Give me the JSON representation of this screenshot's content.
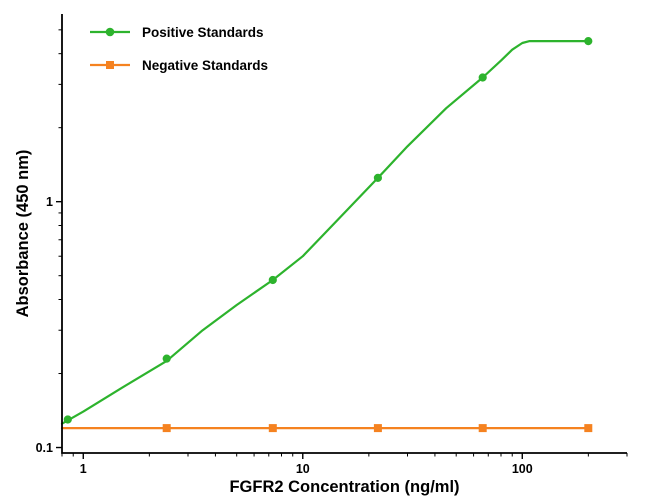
{
  "chart_data": {
    "type": "line",
    "title": "",
    "xlabel": "FGFR2 Concentration (ng/ml)",
    "ylabel": "Absorbance (450 nm)",
    "x_scale": "log",
    "y_scale": "log",
    "xlim": [
      0.8,
      300
    ],
    "ylim": [
      0.095,
      5.8
    ],
    "x_major_ticks": [
      1,
      10,
      100
    ],
    "y_major_ticks": [
      0.1,
      1
    ],
    "grid": false,
    "legend_position": "top-left",
    "axis_color": "#000000",
    "series": [
      {
        "name": "Positive Standards",
        "color": "#2db32d",
        "marker": "circle",
        "points": [
          [
            0.85,
            0.13
          ],
          [
            2.4,
            0.23
          ],
          [
            7.3,
            0.48
          ],
          [
            22,
            1.25
          ],
          [
            66,
            3.2
          ],
          [
            200,
            4.5
          ]
        ],
        "fit_curve": [
          [
            0.8,
            0.125
          ],
          [
            1,
            0.14
          ],
          [
            1.5,
            0.175
          ],
          [
            2.4,
            0.225
          ],
          [
            3.5,
            0.3
          ],
          [
            5,
            0.38
          ],
          [
            7.3,
            0.48
          ],
          [
            10,
            0.6
          ],
          [
            14,
            0.82
          ],
          [
            22,
            1.25
          ],
          [
            30,
            1.68
          ],
          [
            45,
            2.4
          ],
          [
            66,
            3.2
          ],
          [
            80,
            3.75
          ],
          [
            90,
            4.15
          ],
          [
            100,
            4.42
          ],
          [
            108,
            4.5
          ],
          [
            200,
            4.5
          ]
        ]
      },
      {
        "name": "Negative Standards",
        "color": "#f58220",
        "marker": "square",
        "points": [
          [
            2.4,
            0.12
          ],
          [
            7.3,
            0.12
          ],
          [
            22,
            0.12
          ],
          [
            66,
            0.12
          ],
          [
            200,
            0.12
          ]
        ],
        "fit_curve": [
          [
            0.8,
            0.12
          ],
          [
            200,
            0.12
          ]
        ]
      }
    ]
  }
}
